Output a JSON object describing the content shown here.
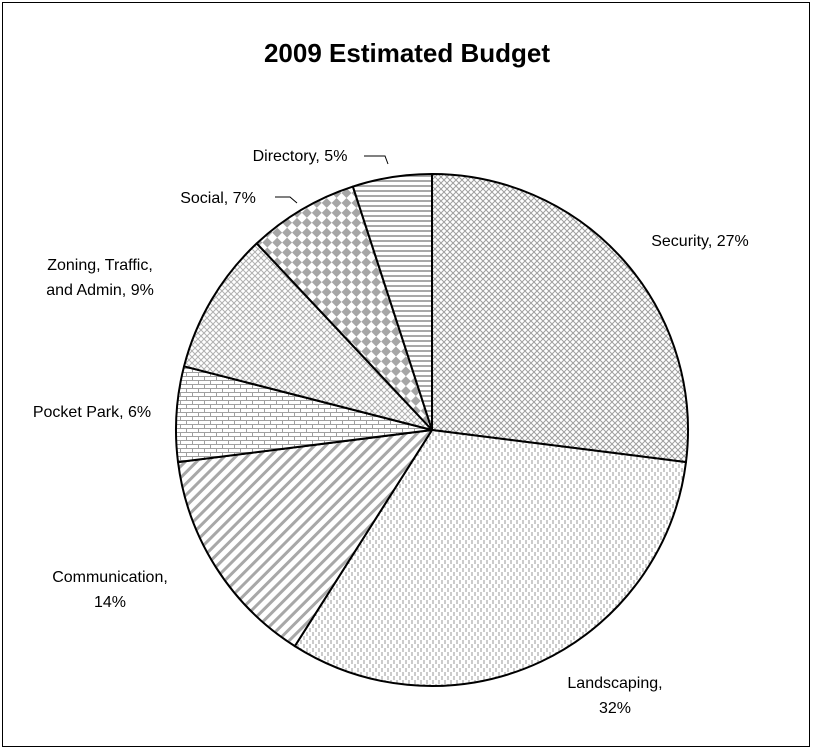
{
  "chart_data": {
    "type": "pie",
    "title": "2009 Estimated Budget",
    "slices": [
      {
        "label": "Security",
        "value": 27,
        "pattern": "crosshatch"
      },
      {
        "label": "Landscaping",
        "value": 32,
        "pattern": "vertical-dashes"
      },
      {
        "label": "Communication",
        "value": 14,
        "pattern": "diagonal-stripes"
      },
      {
        "label": "Pocket Park",
        "value": 6,
        "pattern": "brick"
      },
      {
        "label": "Zoning, Traffic, and Admin",
        "value": 9,
        "pattern": "small-diamonds"
      },
      {
        "label": "Social",
        "value": 7,
        "pattern": "large-checker"
      },
      {
        "label": "Directory",
        "value": 5,
        "pattern": "horizontal-stripes"
      }
    ],
    "label_lines": [
      [
        "Security, 27%"
      ],
      [
        "Landscaping,",
        "32%"
      ],
      [
        "Communication,",
        "14%"
      ],
      [
        "Pocket Park, 6%"
      ],
      [
        "Zoning, Traffic,",
        "and Admin, 9%"
      ],
      [
        "Social, 7%"
      ],
      [
        "Directory, 5%"
      ]
    ],
    "colors": {
      "fill": "#ffffff",
      "pattern": "#9a9a9a",
      "outline": "#000000"
    }
  }
}
